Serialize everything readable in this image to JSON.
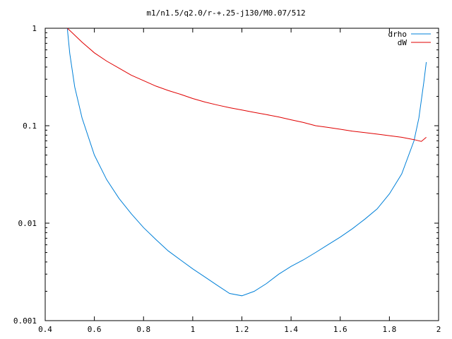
{
  "chart_data": {
    "type": "line",
    "title": "m1/n1.5/q2.0/r-+.25-j130/M0.07/512",
    "xlabel": "",
    "ylabel": "",
    "xlim": [
      0.4,
      2.0
    ],
    "ylim": [
      0.001,
      1
    ],
    "yscale": "log",
    "grid": false,
    "legend_position": "top-right",
    "x_ticks": [
      {
        "value": 0.4,
        "label": "0.4"
      },
      {
        "value": 0.6,
        "label": "0.6"
      },
      {
        "value": 0.8,
        "label": "0.8"
      },
      {
        "value": 1.0,
        "label": "1"
      },
      {
        "value": 1.2,
        "label": "1.2"
      },
      {
        "value": 1.4,
        "label": "1.4"
      },
      {
        "value": 1.6,
        "label": "1.6"
      },
      {
        "value": 1.8,
        "label": "1.8"
      },
      {
        "value": 2.0,
        "label": "2"
      }
    ],
    "y_ticks": [
      {
        "value": 0.001,
        "label": "0.001"
      },
      {
        "value": 0.01,
        "label": "0.01"
      },
      {
        "value": 0.1,
        "label": "0.1"
      },
      {
        "value": 1,
        "label": "1"
      }
    ],
    "series": [
      {
        "name": "drho",
        "color": "#0080d8",
        "x": [
          0.49,
          0.5,
          0.52,
          0.55,
          0.6,
          0.65,
          0.7,
          0.75,
          0.8,
          0.85,
          0.9,
          0.95,
          1.0,
          1.05,
          1.1,
          1.15,
          1.2,
          1.25,
          1.3,
          1.35,
          1.4,
          1.45,
          1.5,
          1.55,
          1.6,
          1.65,
          1.7,
          1.75,
          1.8,
          1.85,
          1.9,
          1.92,
          1.94,
          1.95
        ],
        "y": [
          1.0,
          0.55,
          0.25,
          0.12,
          0.05,
          0.028,
          0.018,
          0.0125,
          0.009,
          0.0068,
          0.0052,
          0.0042,
          0.0034,
          0.0028,
          0.0023,
          0.0019,
          0.0018,
          0.002,
          0.0024,
          0.003,
          0.0036,
          0.0042,
          0.005,
          0.006,
          0.0072,
          0.0088,
          0.011,
          0.014,
          0.02,
          0.032,
          0.07,
          0.12,
          0.28,
          0.45
        ]
      },
      {
        "name": "dW",
        "color": "#e00000",
        "x": [
          0.49,
          0.5,
          0.55,
          0.6,
          0.65,
          0.7,
          0.75,
          0.8,
          0.85,
          0.9,
          0.95,
          1.0,
          1.05,
          1.1,
          1.15,
          1.2,
          1.25,
          1.3,
          1.35,
          1.4,
          1.45,
          1.5,
          1.55,
          1.6,
          1.65,
          1.7,
          1.75,
          1.8,
          1.85,
          1.9,
          1.93,
          1.95
        ],
        "y": [
          1.0,
          0.95,
          0.72,
          0.56,
          0.46,
          0.39,
          0.33,
          0.29,
          0.255,
          0.23,
          0.21,
          0.19,
          0.175,
          0.163,
          0.153,
          0.145,
          0.137,
          0.13,
          0.123,
          0.115,
          0.108,
          0.1,
          0.096,
          0.092,
          0.088,
          0.085,
          0.082,
          0.079,
          0.076,
          0.072,
          0.069,
          0.076
        ]
      }
    ]
  }
}
